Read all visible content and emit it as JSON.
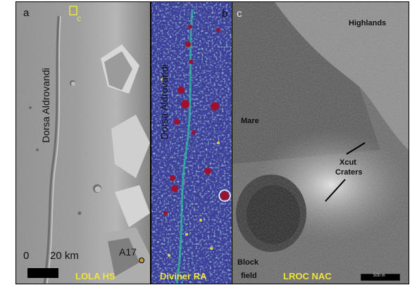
{
  "panels": {
    "a": {
      "letter": "a",
      "inset_letter": "c",
      "feature_label": "Dorsa Aldrovandi",
      "scale_zero": "0",
      "scale_text": "20 km",
      "site_label": "A17",
      "caption": "LOLA HS"
    },
    "b": {
      "letter": "b",
      "feature_label": "Dorsa Aldrovandi",
      "caption": "Diviner RA"
    },
    "c": {
      "letter": "c",
      "highlands": "Highlands",
      "mare": "Mare",
      "xcut_line1": "Xcut",
      "xcut_line2": "Craters",
      "block_line1": "Block",
      "block_line2": "field",
      "caption": "LROC NAC",
      "scalebar": "500 m"
    }
  },
  "colors": {
    "caption": "#f0e33c",
    "inset_box": "#f0e33c",
    "diviner_bg": "#3d3f9a",
    "diviner_hot": "#a0102a"
  }
}
